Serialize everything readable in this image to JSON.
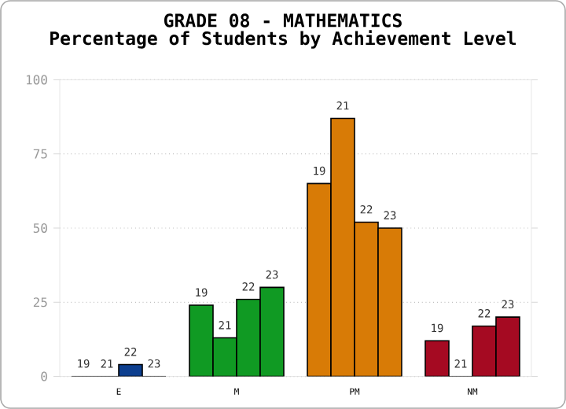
{
  "chart_data": {
    "type": "bar",
    "title": "GRADE 08 - MATHEMATICS",
    "subtitle": "Percentage of Students by Achievement Level",
    "categories": [
      "E",
      "M",
      "PM",
      "NM"
    ],
    "series": [
      {
        "name": "19",
        "colors": [
          "#0d3f8f",
          "#109a23",
          "#d87b06",
          "#a50a22"
        ],
        "values": [
          0,
          24,
          65,
          12
        ]
      },
      {
        "name": "21",
        "colors": [
          "#0d3f8f",
          "#109a23",
          "#d87b06",
          "#a50a22"
        ],
        "values": [
          0,
          13,
          87,
          0
        ]
      },
      {
        "name": "22",
        "colors": [
          "#0d3f8f",
          "#109a23",
          "#d87b06",
          "#a50a22"
        ],
        "values": [
          4,
          26,
          52,
          17
        ]
      },
      {
        "name": "23",
        "colors": [
          "#0d3f8f",
          "#109a23",
          "#d87b06",
          "#a50a22"
        ],
        "values": [
          0,
          30,
          50,
          20
        ]
      }
    ],
    "ylim": [
      0,
      100
    ],
    "yticks": [
      0,
      25,
      50,
      75,
      100
    ],
    "grid": "y"
  }
}
